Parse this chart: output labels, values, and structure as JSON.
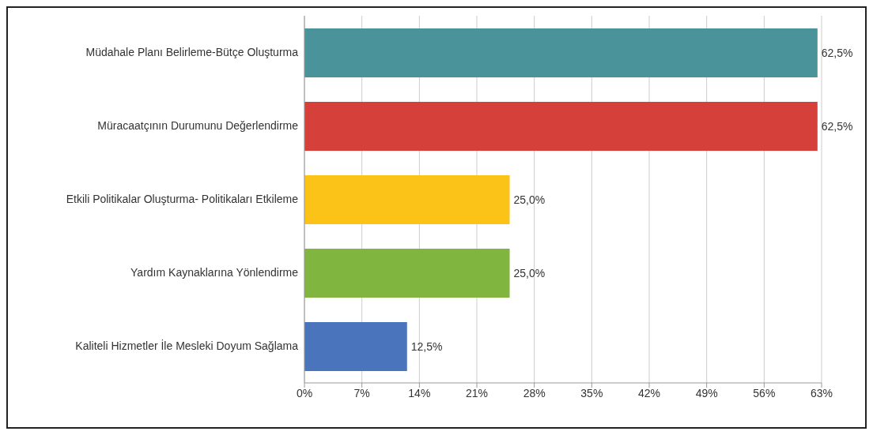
{
  "chart_data": {
    "type": "bar",
    "orientation": "horizontal",
    "categories": [
      "Müdahale Planı Belirleme-Bütçe Oluşturma",
      "Müracaatçının Durumunu Değerlendirme",
      "Etkili Politikalar Oluşturma- Politikaları Etkileme",
      "Yardım Kaynaklarına Yönlendirme",
      "Kaliteli Hizmetler İle Mesleki Doyum Sağlama"
    ],
    "values": [
      62.5,
      62.5,
      25.0,
      25.0,
      12.5
    ],
    "colors": [
      "#4a939b",
      "#d6403a",
      "#fbc318",
      "#80b540",
      "#4a74bb"
    ],
    "value_labels": [
      "62,5%",
      "62,5%",
      "25,0%",
      "25,0%",
      "12,5%"
    ],
    "xlim": [
      0,
      63
    ],
    "xticks": [
      {
        "value": 0,
        "label": "0%"
      },
      {
        "value": 7,
        "label": "7%"
      },
      {
        "value": 14,
        "label": "14%"
      },
      {
        "value": 21,
        "label": "21%"
      },
      {
        "value": 28,
        "label": "28%"
      },
      {
        "value": 35,
        "label": "35%"
      },
      {
        "value": 42,
        "label": "42%"
      },
      {
        "value": 49,
        "label": "49%"
      },
      {
        "value": 56,
        "label": "56%"
      },
      {
        "value": 63,
        "label": "63%"
      }
    ],
    "grid": "x"
  }
}
